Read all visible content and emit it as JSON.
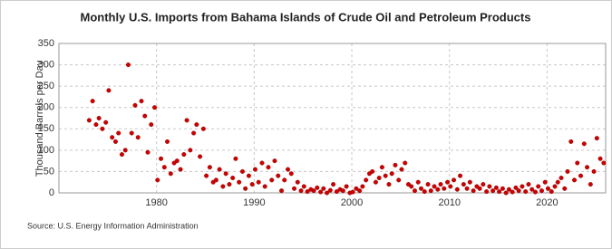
{
  "chart_data": {
    "type": "scatter",
    "title": "Monthly U.S. Imports from Bahama Islands of Crude Oil and Petroleum Products",
    "y_label": "Thousand Barrels per Day",
    "source": "Source: U.S. Energy Information Administration",
    "color": "#cc0000",
    "grid": true,
    "xlim": [
      1970,
      2026
    ],
    "xticks": [
      1980,
      1990,
      2000,
      2010,
      2020
    ],
    "ylim": [
      0,
      350
    ],
    "yticks": [
      0,
      50,
      100,
      150,
      200,
      250,
      300,
      350
    ],
    "x": [
      1973.1,
      1973.45,
      1973.8,
      1974.1,
      1974.45,
      1974.8,
      1975.1,
      1975.45,
      1975.8,
      1976.1,
      1976.45,
      1976.8,
      1977.1,
      1977.45,
      1977.8,
      1978.1,
      1978.45,
      1978.8,
      1979.1,
      1979.45,
      1979.8,
      1980.1,
      1980.45,
      1980.8,
      1981.1,
      1981.45,
      1981.8,
      1982.1,
      1982.45,
      1982.8,
      1983.1,
      1983.45,
      1983.8,
      1984.1,
      1984.45,
      1984.8,
      1985.1,
      1985.45,
      1985.8,
      1986.1,
      1986.45,
      1986.8,
      1987.1,
      1987.45,
      1987.8,
      1988.1,
      1988.45,
      1988.8,
      1989.1,
      1989.45,
      1989.8,
      1990.1,
      1990.45,
      1990.8,
      1991.1,
      1991.45,
      1991.8,
      1992.1,
      1992.45,
      1992.8,
      1993.1,
      1993.45,
      1993.8,
      1994.1,
      1994.45,
      1994.8,
      1995.1,
      1995.45,
      1995.8,
      1996.1,
      1996.45,
      1996.8,
      1997.1,
      1997.45,
      1997.8,
      1998.1,
      1998.45,
      1998.8,
      1999.1,
      1999.45,
      1999.8,
      2000.1,
      2000.45,
      2000.8,
      2001.1,
      2001.45,
      2001.8,
      2002.1,
      2002.45,
      2002.8,
      2003.1,
      2003.45,
      2003.8,
      2004.1,
      2004.45,
      2004.8,
      2005.1,
      2005.45,
      2005.8,
      2006.1,
      2006.45,
      2006.8,
      2007.1,
      2007.45,
      2007.8,
      2008.1,
      2008.45,
      2008.8,
      2009.1,
      2009.45,
      2009.8,
      2010.1,
      2010.45,
      2010.8,
      2011.1,
      2011.45,
      2011.8,
      2012.1,
      2012.45,
      2012.8,
      2013.1,
      2013.45,
      2013.8,
      2014.1,
      2014.45,
      2014.8,
      2015.1,
      2015.45,
      2015.8,
      2016.1,
      2016.45,
      2016.8,
      2017.1,
      2017.45,
      2017.8,
      2018.1,
      2018.45,
      2018.8,
      2019.1,
      2019.45,
      2019.8,
      2020.1,
      2020.45,
      2020.8,
      2021.1,
      2021.45,
      2021.8,
      2022.1,
      2022.45,
      2022.8,
      2023.1,
      2023.45,
      2023.8,
      2024.1,
      2024.45,
      2024.8,
      2025.1,
      2025.45,
      2025.8
    ],
    "values": [
      170,
      215,
      160,
      175,
      150,
      165,
      240,
      130,
      120,
      140,
      90,
      100,
      300,
      140,
      205,
      130,
      215,
      180,
      95,
      160,
      200,
      30,
      80,
      60,
      120,
      45,
      70,
      75,
      55,
      90,
      170,
      100,
      140,
      160,
      85,
      150,
      40,
      60,
      25,
      30,
      55,
      15,
      45,
      20,
      35,
      80,
      25,
      50,
      10,
      40,
      20,
      55,
      25,
      70,
      15,
      60,
      30,
      75,
      40,
      5,
      30,
      55,
      45,
      10,
      25,
      5,
      15,
      3,
      8,
      5,
      12,
      2,
      10,
      0,
      6,
      20,
      3,
      8,
      5,
      15,
      0,
      2,
      10,
      5,
      15,
      30,
      45,
      50,
      25,
      35,
      60,
      40,
      20,
      45,
      65,
      30,
      55,
      70,
      20,
      15,
      5,
      25,
      10,
      3,
      20,
      5,
      15,
      8,
      20,
      10,
      25,
      15,
      30,
      8,
      40,
      20,
      10,
      25,
      5,
      15,
      10,
      20,
      3,
      15,
      5,
      12,
      3,
      10,
      0,
      8,
      2,
      12,
      5,
      15,
      3,
      20,
      8,
      2,
      15,
      5,
      25,
      10,
      3,
      15,
      25,
      35,
      10,
      50,
      120,
      30,
      70,
      40,
      115,
      60,
      20,
      50,
      128,
      80,
      70
    ]
  }
}
